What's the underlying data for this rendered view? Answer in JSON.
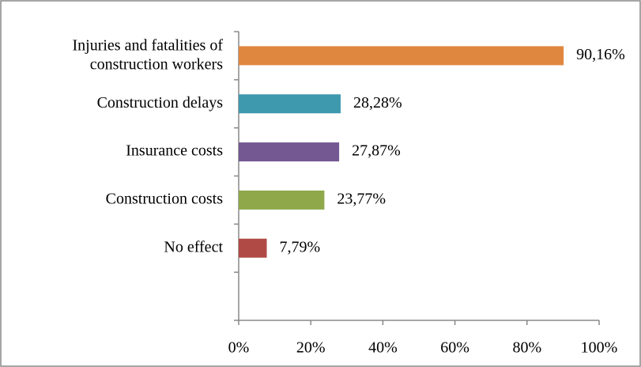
{
  "chart_data": {
    "type": "bar",
    "orientation": "horizontal",
    "categories": [
      "Injuries and fatalities of construction workers",
      "Construction delays",
      "Insurance costs",
      "Construction costs",
      "No effect",
      null
    ],
    "values": [
      90.16,
      28.28,
      27.87,
      23.77,
      7.79,
      null
    ],
    "value_labels": [
      "90,16%",
      "28,28%",
      "27,87%",
      "23,77%",
      "7,79%",
      null
    ],
    "colors": [
      "#e0873f",
      "#3e98ae",
      "#735891",
      "#8ea84a",
      "#b04a45",
      null
    ],
    "xlim": [
      0,
      100
    ],
    "xticks": [
      {
        "value": 0,
        "label": "0%"
      },
      {
        "value": 20,
        "label": "20%"
      },
      {
        "value": 40,
        "label": "40%"
      },
      {
        "value": 60,
        "label": "60%"
      },
      {
        "value": 80,
        "label": "80%"
      },
      {
        "value": 100,
        "label": "100%"
      }
    ],
    "grid": false
  }
}
